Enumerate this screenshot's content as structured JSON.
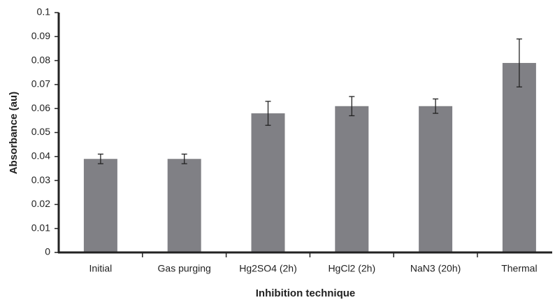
{
  "chart_data": {
    "type": "bar",
    "x_label": "Inhibition technique",
    "y_label": "Absorbance (au)",
    "categories": [
      "Initial",
      "Gas purging",
      "Hg2SO4 (2h)",
      "HgCl2 (2h)",
      "NaN3 (20h)",
      "Thermal"
    ],
    "values": [
      0.039,
      0.039,
      0.058,
      0.061,
      0.061,
      0.079
    ],
    "errors": [
      0.002,
      0.002,
      0.005,
      0.004,
      0.003,
      0.01
    ],
    "color": "#808085",
    "ylim": [
      0,
      0.1
    ],
    "yticks": [
      0,
      0.01,
      0.02,
      0.03,
      0.04,
      0.05,
      0.06,
      0.07,
      0.08,
      0.09,
      0.1
    ],
    "grid": false
  }
}
